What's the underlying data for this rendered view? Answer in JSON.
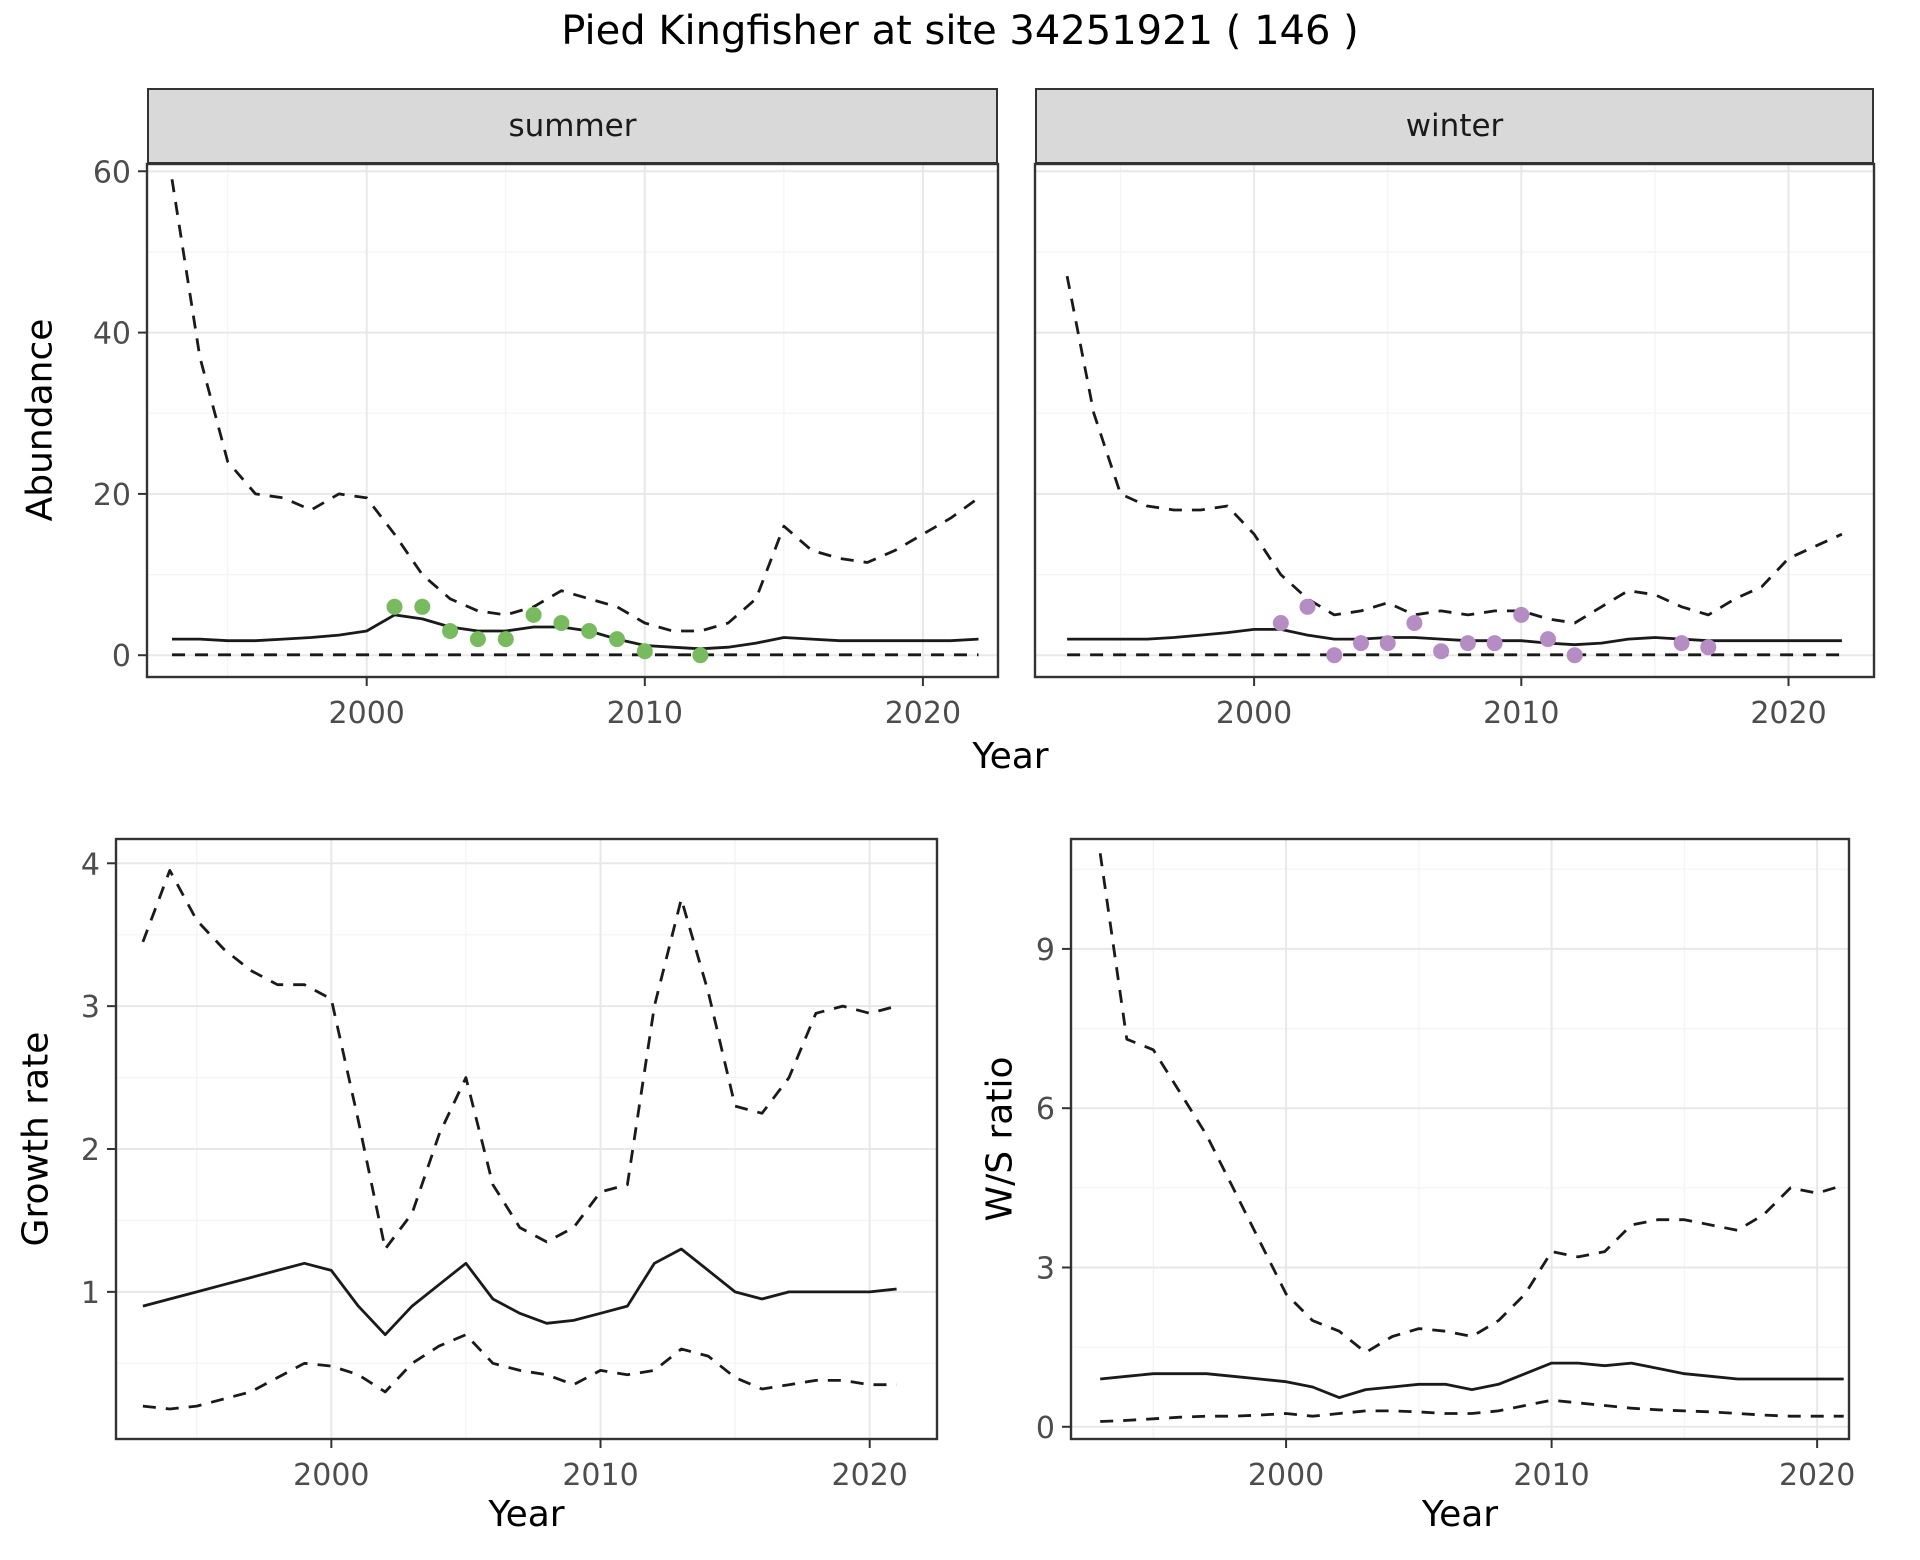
{
  "title": "Pied Kingfisher at site 34251921 ( 146 )",
  "colors": {
    "line": "#1a1a1a",
    "summer_points": "#77bb5e",
    "winter_points": "#b58cc4",
    "strip_bg": "#d9d9d9",
    "grid_major": "#e8e8e8",
    "grid_minor": "#f4f4f4",
    "tick_label": "#4d4d4d",
    "panel_border": "#333333"
  },
  "axis_labels": {
    "year": "Year",
    "abundance": "Abundance",
    "growth": "Growth rate",
    "ws": "W/S ratio"
  },
  "chart_data": [
    {
      "id": "abundance-summer",
      "type": "line",
      "facet_label": "summer",
      "x_label": "Year",
      "y_label": "Abundance",
      "x_range": [
        1992.1,
        2022.7
      ],
      "y_range": [
        -2.7,
        60.9
      ],
      "x_ticks": [
        2000,
        2010,
        2020
      ],
      "y_ticks": [
        0,
        20,
        40,
        60
      ],
      "years": [
        1993,
        1994,
        1995,
        1996,
        1997,
        1998,
        1999,
        2000,
        2001,
        2002,
        2003,
        2004,
        2005,
        2006,
        2007,
        2008,
        2009,
        2010,
        2011,
        2012,
        2013,
        2014,
        2015,
        2016,
        2017,
        2018,
        2019,
        2020,
        2021,
        2022
      ],
      "series": [
        {
          "name": "upper-ci",
          "style": "dashed",
          "values": [
            59,
            37,
            24,
            20,
            19.5,
            18,
            20,
            19.5,
            15,
            10,
            7,
            5.5,
            5,
            6,
            8,
            7,
            6,
            4,
            3,
            3,
            4,
            7,
            16,
            13,
            12,
            11.5,
            13,
            15,
            17,
            19.5
          ]
        },
        {
          "name": "mean",
          "style": "solid",
          "values": [
            2,
            2,
            1.8,
            1.8,
            2,
            2.2,
            2.5,
            3,
            5,
            4.5,
            3.5,
            3,
            3,
            3.5,
            3.5,
            3,
            2,
            1.2,
            1,
            0.8,
            1,
            1.5,
            2.2,
            2,
            1.8,
            1.8,
            1.8,
            1.8,
            1.8,
            2
          ]
        },
        {
          "name": "lower-ci",
          "style": "dashed",
          "values": [
            0.05,
            0.05,
            0.05,
            0.05,
            0.05,
            0.05,
            0.05,
            0.05,
            0.05,
            0.05,
            0.05,
            0.05,
            0.05,
            0.05,
            0.05,
            0.05,
            0.05,
            0.05,
            0.05,
            0.05,
            0.05,
            0.05,
            0.05,
            0.05,
            0.05,
            0.05,
            0.05,
            0.05,
            0.05,
            0.05
          ]
        }
      ],
      "points": {
        "name": "observed-summer",
        "color_key": "summer_points",
        "x": [
          2001,
          2002,
          2003,
          2004,
          2005,
          2006,
          2007,
          2008,
          2009,
          2010,
          2012
        ],
        "y": [
          6,
          6,
          3,
          2,
          2,
          5,
          4,
          3,
          2,
          0.5,
          0
        ]
      }
    },
    {
      "id": "abundance-winter",
      "type": "line",
      "facet_label": "winter",
      "x_label": "Year",
      "y_label": "Abundance",
      "x_range": [
        1991.8,
        2023.2
      ],
      "y_range": [
        -2.7,
        60.9
      ],
      "x_ticks": [
        2000,
        2010,
        2020
      ],
      "y_ticks": [
        0,
        20,
        40,
        60
      ],
      "years": [
        1993,
        1994,
        1995,
        1996,
        1997,
        1998,
        1999,
        2000,
        2001,
        2002,
        2003,
        2004,
        2005,
        2006,
        2007,
        2008,
        2009,
        2010,
        2011,
        2012,
        2013,
        2014,
        2015,
        2016,
        2017,
        2018,
        2019,
        2020,
        2021,
        2022
      ],
      "series": [
        {
          "name": "upper-ci",
          "style": "dashed",
          "values": [
            47,
            30,
            20,
            18.5,
            18,
            18,
            18.5,
            15,
            10,
            7,
            5,
            5.5,
            6.5,
            5,
            5.5,
            5,
            5.5,
            5.5,
            4.5,
            4,
            6,
            8,
            7.5,
            6,
            5,
            7,
            8.5,
            12,
            13.5,
            15
          ]
        },
        {
          "name": "mean",
          "style": "solid",
          "values": [
            2,
            2,
            2,
            2,
            2.2,
            2.5,
            2.8,
            3.2,
            3.2,
            2.5,
            2,
            2,
            2.2,
            2.2,
            2,
            1.8,
            1.8,
            1.8,
            1.5,
            1.3,
            1.5,
            2,
            2.2,
            2,
            1.8,
            1.8,
            1.8,
            1.8,
            1.8,
            1.8
          ]
        },
        {
          "name": "lower-ci",
          "style": "dashed",
          "values": [
            0.05,
            0.05,
            0.05,
            0.05,
            0.05,
            0.05,
            0.05,
            0.05,
            0.05,
            0.05,
            0.05,
            0.05,
            0.05,
            0.05,
            0.05,
            0.05,
            0.05,
            0.05,
            0.05,
            0.05,
            0.05,
            0.05,
            0.05,
            0.05,
            0.05,
            0.05,
            0.05,
            0.05,
            0.05,
            0.05
          ]
        }
      ],
      "points": {
        "name": "observed-winter",
        "color_key": "winter_points",
        "x": [
          2001,
          2002,
          2003,
          2004,
          2005,
          2006,
          2007,
          2008,
          2009,
          2010,
          2011,
          2012,
          2016,
          2017
        ],
        "y": [
          4,
          6,
          0,
          1.5,
          1.5,
          4,
          0.5,
          1.5,
          1.5,
          5,
          2,
          0,
          1.5,
          1
        ]
      }
    },
    {
      "id": "growth-rate",
      "type": "line",
      "facet_label": "",
      "x_label": "Year",
      "y_label": "Growth rate",
      "x_range": [
        1992.0,
        2022.5
      ],
      "y_range": [
        -0.03,
        4.17
      ],
      "x_ticks": [
        2000,
        2010,
        2020
      ],
      "y_ticks": [
        1,
        2,
        3,
        4
      ],
      "years": [
        1993,
        1994,
        1995,
        1996,
        1997,
        1998,
        1999,
        2000,
        2001,
        2002,
        2003,
        2004,
        2005,
        2006,
        2007,
        2008,
        2009,
        2010,
        2011,
        2012,
        2013,
        2014,
        2015,
        2016,
        2017,
        2018,
        2019,
        2020,
        2021
      ],
      "series": [
        {
          "name": "upper-ci",
          "style": "dashed",
          "values": [
            3.45,
            3.95,
            3.6,
            3.4,
            3.25,
            3.15,
            3.15,
            3.05,
            2.2,
            1.3,
            1.55,
            2.1,
            2.5,
            1.75,
            1.45,
            1.35,
            1.45,
            1.7,
            1.75,
            3.0,
            3.75,
            3.1,
            2.3,
            2.25,
            2.5,
            2.95,
            3.0,
            2.95,
            3.0
          ]
        },
        {
          "name": "mean",
          "style": "solid",
          "values": [
            0.9,
            0.95,
            1.0,
            1.05,
            1.1,
            1.15,
            1.2,
            1.15,
            0.9,
            0.7,
            0.9,
            1.05,
            1.2,
            0.95,
            0.85,
            0.78,
            0.8,
            0.85,
            0.9,
            1.2,
            1.3,
            1.15,
            1.0,
            0.95,
            1.0,
            1.0,
            1.0,
            1.0,
            1.02
          ]
        },
        {
          "name": "lower-ci",
          "style": "dashed",
          "values": [
            0.2,
            0.18,
            0.2,
            0.25,
            0.3,
            0.4,
            0.5,
            0.48,
            0.42,
            0.3,
            0.5,
            0.62,
            0.7,
            0.5,
            0.45,
            0.42,
            0.35,
            0.45,
            0.42,
            0.45,
            0.6,
            0.55,
            0.4,
            0.32,
            0.35,
            0.38,
            0.38,
            0.35,
            0.35
          ]
        }
      ]
    },
    {
      "id": "ws-ratio",
      "type": "line",
      "facet_label": "",
      "x_label": "Year",
      "y_label": "W/S ratio",
      "x_range": [
        1991.9,
        2021.2
      ],
      "y_range": [
        -0.23,
        11.07
      ],
      "x_ticks": [
        2000,
        2010,
        2020
      ],
      "y_ticks": [
        0,
        3,
        6,
        9
      ],
      "years": [
        1993,
        1994,
        1995,
        1996,
        1997,
        1998,
        1999,
        2000,
        2001,
        2002,
        2003,
        2004,
        2005,
        2006,
        2007,
        2008,
        2009,
        2010,
        2011,
        2012,
        2013,
        2014,
        2015,
        2016,
        2017,
        2018,
        2019,
        2020,
        2021
      ],
      "series": [
        {
          "name": "upper-ci",
          "style": "dashed",
          "values": [
            10.8,
            7.3,
            7.1,
            6.3,
            5.5,
            4.5,
            3.5,
            2.5,
            2.0,
            1.8,
            1.4,
            1.7,
            1.85,
            1.8,
            1.7,
            2.0,
            2.5,
            3.3,
            3.2,
            3.3,
            3.8,
            3.9,
            3.9,
            3.8,
            3.7,
            4.0,
            4.5,
            4.4,
            4.55
          ]
        },
        {
          "name": "mean",
          "style": "solid",
          "values": [
            0.9,
            0.95,
            1.0,
            1.0,
            1.0,
            0.95,
            0.9,
            0.85,
            0.75,
            0.55,
            0.7,
            0.75,
            0.8,
            0.8,
            0.7,
            0.8,
            1.0,
            1.2,
            1.2,
            1.15,
            1.2,
            1.1,
            1.0,
            0.95,
            0.9,
            0.9,
            0.9,
            0.9,
            0.9
          ]
        },
        {
          "name": "lower-ci",
          "style": "dashed",
          "values": [
            0.1,
            0.12,
            0.15,
            0.18,
            0.2,
            0.2,
            0.22,
            0.25,
            0.2,
            0.25,
            0.3,
            0.3,
            0.28,
            0.25,
            0.25,
            0.3,
            0.4,
            0.5,
            0.45,
            0.4,
            0.35,
            0.32,
            0.3,
            0.28,
            0.25,
            0.22,
            0.2,
            0.2,
            0.2
          ]
        }
      ]
    }
  ]
}
